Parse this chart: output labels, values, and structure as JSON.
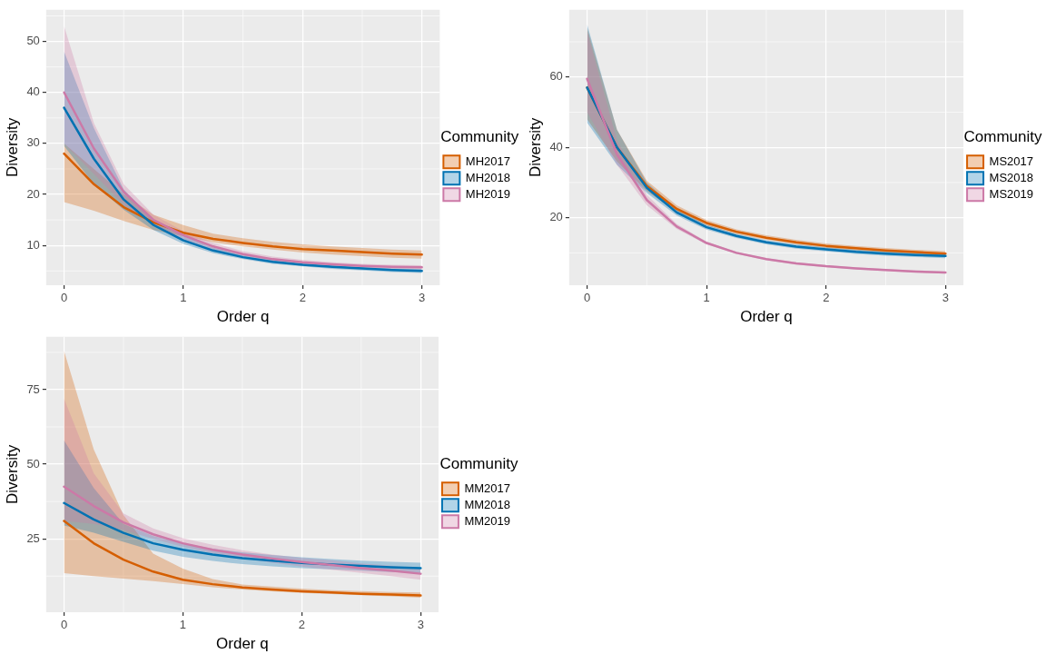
{
  "chart_data": [
    {
      "type": "line",
      "xlabel": "Order q",
      "ylabel": "Diversity",
      "legend_title": "Community",
      "legend": "right",
      "grid": true,
      "x": [
        0,
        0.25,
        0.5,
        0.75,
        1,
        1.25,
        1.5,
        1.75,
        2,
        2.25,
        2.5,
        2.75,
        3
      ],
      "xlim": [
        -0.15,
        3.15
      ],
      "xticks": [
        0,
        1,
        2,
        3
      ],
      "ylim": [
        2.2,
        56.2
      ],
      "yticks": [
        10,
        20,
        30,
        40,
        50
      ],
      "series": [
        {
          "name": "MH2017",
          "color": "#d55e00",
          "values": [
            28,
            22,
            17.5,
            14.5,
            12.5,
            11.3,
            10.5,
            9.8,
            9.3,
            9,
            8.7,
            8.4,
            8.2
          ],
          "lower": [
            18.5,
            16.8,
            14.8,
            13,
            11.8,
            10.6,
            9.8,
            9.2,
            8.6,
            8.2,
            7.9,
            7.6,
            7.4
          ],
          "upper": [
            30,
            25,
            20,
            16,
            14,
            12.3,
            11.4,
            10.7,
            10.2,
            9.8,
            9.5,
            9.2,
            9
          ]
        },
        {
          "name": "MH2018",
          "color": "#0072b2",
          "values": [
            37,
            27,
            19,
            14,
            11,
            9,
            7.7,
            6.8,
            6.2,
            5.8,
            5.5,
            5.2,
            5
          ],
          "lower": [
            29.5,
            22,
            17,
            13,
            10.3,
            8.5,
            7.3,
            6.4,
            5.9,
            5.4,
            5.1,
            4.8,
            4.6
          ],
          "upper": [
            48,
            33,
            21,
            15,
            11.8,
            9.6,
            8.2,
            7.2,
            6.6,
            6.1,
            5.8,
            5.5,
            5.4
          ]
        },
        {
          "name": "MH2019",
          "color": "#cc79a7",
          "values": [
            40,
            29,
            20.5,
            15,
            12,
            9.8,
            8.3,
            7.3,
            6.7,
            6.3,
            6,
            5.8,
            5.7
          ],
          "lower": [
            30,
            24,
            18,
            14,
            11,
            9.2,
            7.9,
            7,
            6.3,
            6,
            5.7,
            5.4,
            5.3
          ],
          "upper": [
            53,
            34,
            22,
            16,
            12.8,
            10.5,
            8.9,
            7.8,
            7.2,
            6.7,
            6.4,
            6.2,
            6.1
          ]
        }
      ]
    },
    {
      "type": "line",
      "xlabel": "Order q",
      "ylabel": "Diversity",
      "legend_title": "Community",
      "legend": "right",
      "grid": true,
      "x": [
        0,
        0.25,
        0.5,
        0.75,
        1,
        1.25,
        1.5,
        1.75,
        2,
        2.25,
        2.5,
        2.75,
        3
      ],
      "xlim": [
        -0.15,
        3.15
      ],
      "xticks": [
        0,
        1,
        2,
        3
      ],
      "ylim": [
        0.8,
        79.1
      ],
      "yticks": [
        20,
        40,
        60
      ],
      "series": [
        {
          "name": "MS2017",
          "color": "#d55e00",
          "values": [
            57,
            40,
            29,
            22.5,
            18.5,
            16,
            14.3,
            13,
            12,
            11.3,
            10.7,
            10.2,
            9.8
          ],
          "lower": [
            48,
            36,
            27.5,
            21.6,
            17.8,
            15.3,
            13.7,
            12.4,
            11.4,
            10.7,
            10.1,
            9.6,
            9.2
          ],
          "upper": [
            74,
            45,
            30.5,
            23.5,
            19.3,
            16.7,
            15,
            13.7,
            12.7,
            12,
            11.4,
            10.9,
            10.5
          ]
        },
        {
          "name": "MS2018",
          "color": "#0072b2",
          "values": [
            57,
            40,
            28.5,
            21.5,
            17.3,
            14.8,
            13,
            11.8,
            11,
            10.3,
            9.8,
            9.4,
            9.1
          ],
          "lower": [
            47,
            35,
            27,
            20.6,
            16.6,
            14.2,
            12.4,
            11.2,
            10.4,
            9.7,
            9.2,
            8.8,
            8.5
          ],
          "upper": [
            75,
            45,
            30,
            22.4,
            18,
            15.4,
            13.6,
            12.4,
            11.6,
            10.9,
            10.4,
            10,
            9.7
          ]
        },
        {
          "name": "MS2019",
          "color": "#cc79a7",
          "values": [
            59.5,
            38,
            25,
            17.5,
            12.8,
            10,
            8.2,
            7,
            6.2,
            5.6,
            5.1,
            4.7,
            4.4
          ],
          "lower": [
            50,
            35,
            23.5,
            16.8,
            12.4,
            9.7,
            7.9,
            6.7,
            5.9,
            5.3,
            4.8,
            4.4,
            4.1
          ],
          "upper": [
            73,
            42,
            26.5,
            18.2,
            13.2,
            10.3,
            8.5,
            7.3,
            6.5,
            5.9,
            5.4,
            5,
            4.7
          ]
        }
      ]
    },
    {
      "type": "line",
      "xlabel": "Order q",
      "ylabel": "Diversity",
      "legend_title": "Community",
      "legend": "right",
      "grid": true,
      "x": [
        0,
        0.25,
        0.5,
        0.75,
        1,
        1.25,
        1.5,
        1.75,
        2,
        2.25,
        2.5,
        2.75,
        3
      ],
      "xlim": [
        -0.15,
        3.15
      ],
      "xticks": [
        0,
        1,
        2,
        3
      ],
      "ylim": [
        0.4,
        92.7
      ],
      "yticks": [
        25,
        50,
        75
      ],
      "series": [
        {
          "name": "MM2017",
          "color": "#d55e00",
          "values": [
            31,
            23.5,
            18,
            14,
            11.3,
            9.8,
            8.7,
            8,
            7.4,
            7,
            6.6,
            6.3,
            6
          ],
          "lower": [
            13.5,
            12.5,
            11.7,
            10.8,
            9.8,
            8.8,
            8,
            7.4,
            6.9,
            6.5,
            6.1,
            5.7,
            5.3
          ],
          "upper": [
            88,
            55,
            33,
            20,
            15,
            11.5,
            9.7,
            9,
            8.3,
            7.8,
            7.5,
            7.2,
            7
          ]
        },
        {
          "name": "MM2018",
          "color": "#0072b2",
          "values": [
            37,
            31.5,
            27,
            23.5,
            21.3,
            19.7,
            18.5,
            17.7,
            16.9,
            16.4,
            15.9,
            15.5,
            15.2
          ],
          "lower": [
            29.5,
            27,
            24,
            21,
            19,
            17.6,
            16.5,
            15.8,
            15.2,
            14.8,
            14.3,
            13.9,
            13.5
          ],
          "upper": [
            58,
            42,
            30,
            26,
            23.5,
            21.7,
            20.5,
            19.6,
            18.8,
            18.2,
            17.7,
            17.3,
            17
          ]
        },
        {
          "name": "MM2019",
          "color": "#cc79a7",
          "values": [
            42.5,
            36,
            30.5,
            26.5,
            23.5,
            21.3,
            19.7,
            18.4,
            17.2,
            16.2,
            15.2,
            14.3,
            13.3
          ],
          "lower": [
            31,
            30,
            28,
            25,
            22.3,
            20.2,
            18.5,
            17,
            15.7,
            14.6,
            13.6,
            12.5,
            11.3
          ],
          "upper": [
            72,
            47,
            33.5,
            28.5,
            25.2,
            23,
            21.2,
            19.7,
            18.6,
            17.8,
            16.8,
            16,
            15
          ]
        }
      ]
    }
  ]
}
